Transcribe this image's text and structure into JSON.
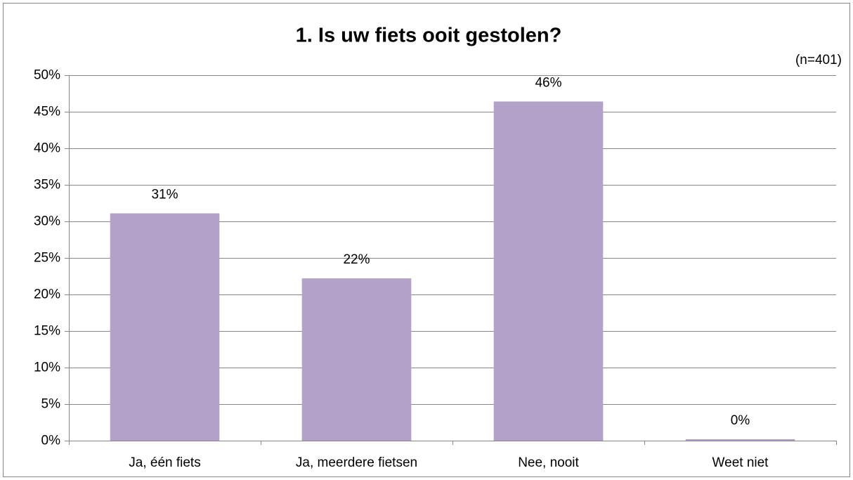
{
  "chart_data": {
    "type": "bar",
    "title": "1. Is uw fiets ooit gestolen?",
    "subtitle": "(n=401)",
    "categories": [
      "Ja, één fiets",
      "Ja, meerdere fietsen",
      "Nee, nooit",
      "Weet niet"
    ],
    "values": [
      31.1,
      22.2,
      46.4,
      0.2
    ],
    "value_labels": [
      "31%",
      "22%",
      "46%",
      "0%"
    ],
    "color": "#b3a2c7",
    "ylim": [
      0,
      50
    ],
    "yticks": [
      {
        "value": 0,
        "label": "0%"
      },
      {
        "value": 5,
        "label": "5%"
      },
      {
        "value": 10,
        "label": "10%"
      },
      {
        "value": 15,
        "label": "15%"
      },
      {
        "value": 20,
        "label": "20%"
      },
      {
        "value": 25,
        "label": "25%"
      },
      {
        "value": 30,
        "label": "30%"
      },
      {
        "value": 35,
        "label": "35%"
      },
      {
        "value": 40,
        "label": "40%"
      },
      {
        "value": 45,
        "label": "45%"
      },
      {
        "value": 50,
        "label": "50%"
      }
    ],
    "grid": true
  }
}
